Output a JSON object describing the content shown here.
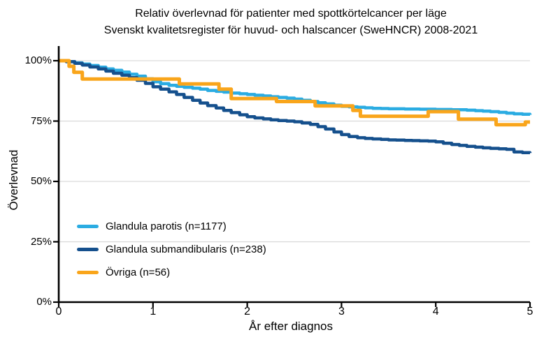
{
  "chart_data": {
    "type": "line",
    "title": "Relativ överlevnad för patienter med spottkörtelcancer per läge",
    "subtitle": "Svenskt kvalitetsregister för huvud- och halscancer (SweHNCR) 2008-2021",
    "xlabel": "År efter diagnos",
    "ylabel": "Överlevnad",
    "xlim": [
      0,
      5
    ],
    "ylim": [
      0,
      100
    ],
    "x_ticks": [
      0,
      1,
      2,
      3,
      4,
      5
    ],
    "y_ticks": [
      {
        "value": 0,
        "label": "0%"
      },
      {
        "value": 25,
        "label": "25%"
      },
      {
        "value": 50,
        "label": "50%"
      },
      {
        "value": 75,
        "label": "75%"
      },
      {
        "value": 100,
        "label": "100%"
      }
    ],
    "grid": "horizontal gridlines at each y tick",
    "legend_position": "inside lower-left",
    "line_style": "step-after",
    "series": [
      {
        "name": "Glandula parotis (n=1177)",
        "color": "#2BACE2",
        "width": 4.5,
        "points": [
          [
            0,
            100
          ],
          [
            0.08,
            99.6
          ],
          [
            0.17,
            99.1
          ],
          [
            0.25,
            98.6
          ],
          [
            0.33,
            98.0
          ],
          [
            0.42,
            97.3
          ],
          [
            0.5,
            96.6
          ],
          [
            0.58,
            96.0
          ],
          [
            0.67,
            95.3
          ],
          [
            0.75,
            94.4
          ],
          [
            0.83,
            93.6
          ],
          [
            0.92,
            92.5
          ],
          [
            1.0,
            91.3
          ],
          [
            1.08,
            90.5
          ],
          [
            1.17,
            89.8
          ],
          [
            1.25,
            89.4
          ],
          [
            1.33,
            89.0
          ],
          [
            1.42,
            88.6
          ],
          [
            1.5,
            88.2
          ],
          [
            1.58,
            87.7
          ],
          [
            1.67,
            87.3
          ],
          [
            1.75,
            87.0
          ],
          [
            1.83,
            86.6
          ],
          [
            1.92,
            86.3
          ],
          [
            2.0,
            86.0
          ],
          [
            2.08,
            85.7
          ],
          [
            2.17,
            85.4
          ],
          [
            2.25,
            85.1
          ],
          [
            2.33,
            84.8
          ],
          [
            2.42,
            84.5
          ],
          [
            2.5,
            84.1
          ],
          [
            2.58,
            83.6
          ],
          [
            2.67,
            83.1
          ],
          [
            2.75,
            82.6
          ],
          [
            2.83,
            82.1
          ],
          [
            2.92,
            81.6
          ],
          [
            3.0,
            81.1
          ],
          [
            3.08,
            80.9
          ],
          [
            3.17,
            80.7
          ],
          [
            3.25,
            80.5
          ],
          [
            3.33,
            80.3
          ],
          [
            3.42,
            80.2
          ],
          [
            3.5,
            80.1
          ],
          [
            3.67,
            80.0
          ],
          [
            3.83,
            79.9
          ],
          [
            4.0,
            79.8
          ],
          [
            4.17,
            79.7
          ],
          [
            4.33,
            79.5
          ],
          [
            4.42,
            79.3
          ],
          [
            4.5,
            79.1
          ],
          [
            4.58,
            78.9
          ],
          [
            4.67,
            78.6
          ],
          [
            4.75,
            78.3
          ],
          [
            4.83,
            78.0
          ],
          [
            4.92,
            77.8
          ],
          [
            5.0,
            77.6
          ]
        ]
      },
      {
        "name": "Glandula submandibularis (n=238)",
        "color": "#15508D",
        "width": 4.5,
        "points": [
          [
            0,
            100
          ],
          [
            0.08,
            99.6
          ],
          [
            0.17,
            98.9
          ],
          [
            0.25,
            98.2
          ],
          [
            0.33,
            97.4
          ],
          [
            0.42,
            96.6
          ],
          [
            0.5,
            95.7
          ],
          [
            0.58,
            94.8
          ],
          [
            0.67,
            94.0
          ],
          [
            0.75,
            93.0
          ],
          [
            0.83,
            91.9
          ],
          [
            0.92,
            90.6
          ],
          [
            1.0,
            89.2
          ],
          [
            1.08,
            88.2
          ],
          [
            1.17,
            87.1
          ],
          [
            1.25,
            86.0
          ],
          [
            1.33,
            84.8
          ],
          [
            1.42,
            83.6
          ],
          [
            1.5,
            82.5
          ],
          [
            1.58,
            81.4
          ],
          [
            1.67,
            80.4
          ],
          [
            1.75,
            79.4
          ],
          [
            1.83,
            78.5
          ],
          [
            1.92,
            77.6
          ],
          [
            2.0,
            76.8
          ],
          [
            2.08,
            76.3
          ],
          [
            2.17,
            75.9
          ],
          [
            2.25,
            75.5
          ],
          [
            2.33,
            75.2
          ],
          [
            2.42,
            75.0
          ],
          [
            2.5,
            74.7
          ],
          [
            2.58,
            74.2
          ],
          [
            2.67,
            73.6
          ],
          [
            2.75,
            72.7
          ],
          [
            2.83,
            71.7
          ],
          [
            2.92,
            70.5
          ],
          [
            3.0,
            69.4
          ],
          [
            3.08,
            68.6
          ],
          [
            3.17,
            68.1
          ],
          [
            3.25,
            67.8
          ],
          [
            3.33,
            67.6
          ],
          [
            3.42,
            67.4
          ],
          [
            3.5,
            67.2
          ],
          [
            3.58,
            67.1
          ],
          [
            3.67,
            67.0
          ],
          [
            3.75,
            66.9
          ],
          [
            3.83,
            66.8
          ],
          [
            3.92,
            66.7
          ],
          [
            4.0,
            66.4
          ],
          [
            4.08,
            65.8
          ],
          [
            4.17,
            65.3
          ],
          [
            4.25,
            64.9
          ],
          [
            4.33,
            64.5
          ],
          [
            4.42,
            64.2
          ],
          [
            4.5,
            63.9
          ],
          [
            4.58,
            63.7
          ],
          [
            4.67,
            63.5
          ],
          [
            4.75,
            63.3
          ],
          [
            4.83,
            62.2
          ],
          [
            4.92,
            61.9
          ],
          [
            5.0,
            61.8
          ]
        ]
      },
      {
        "name": "Övriga (n=56)",
        "color": "#F9A51B",
        "width": 5,
        "points": [
          [
            0,
            100
          ],
          [
            0.11,
            97.7
          ],
          [
            0.16,
            95.2
          ],
          [
            0.25,
            92.4
          ],
          [
            1.28,
            90.4
          ],
          [
            1.7,
            88.2
          ],
          [
            1.83,
            84.3
          ],
          [
            2.31,
            83.1
          ],
          [
            2.72,
            81.3
          ],
          [
            3.12,
            79.4
          ],
          [
            3.2,
            77.0
          ],
          [
            3.92,
            78.9
          ],
          [
            4.24,
            75.8
          ],
          [
            4.64,
            73.5
          ],
          [
            4.95,
            74.6
          ],
          [
            5.0,
            74.6
          ]
        ]
      }
    ],
    "colors": {
      "axis": "#000000",
      "gridline": "#D9D9D9",
      "background": "#FFFFFF"
    }
  }
}
